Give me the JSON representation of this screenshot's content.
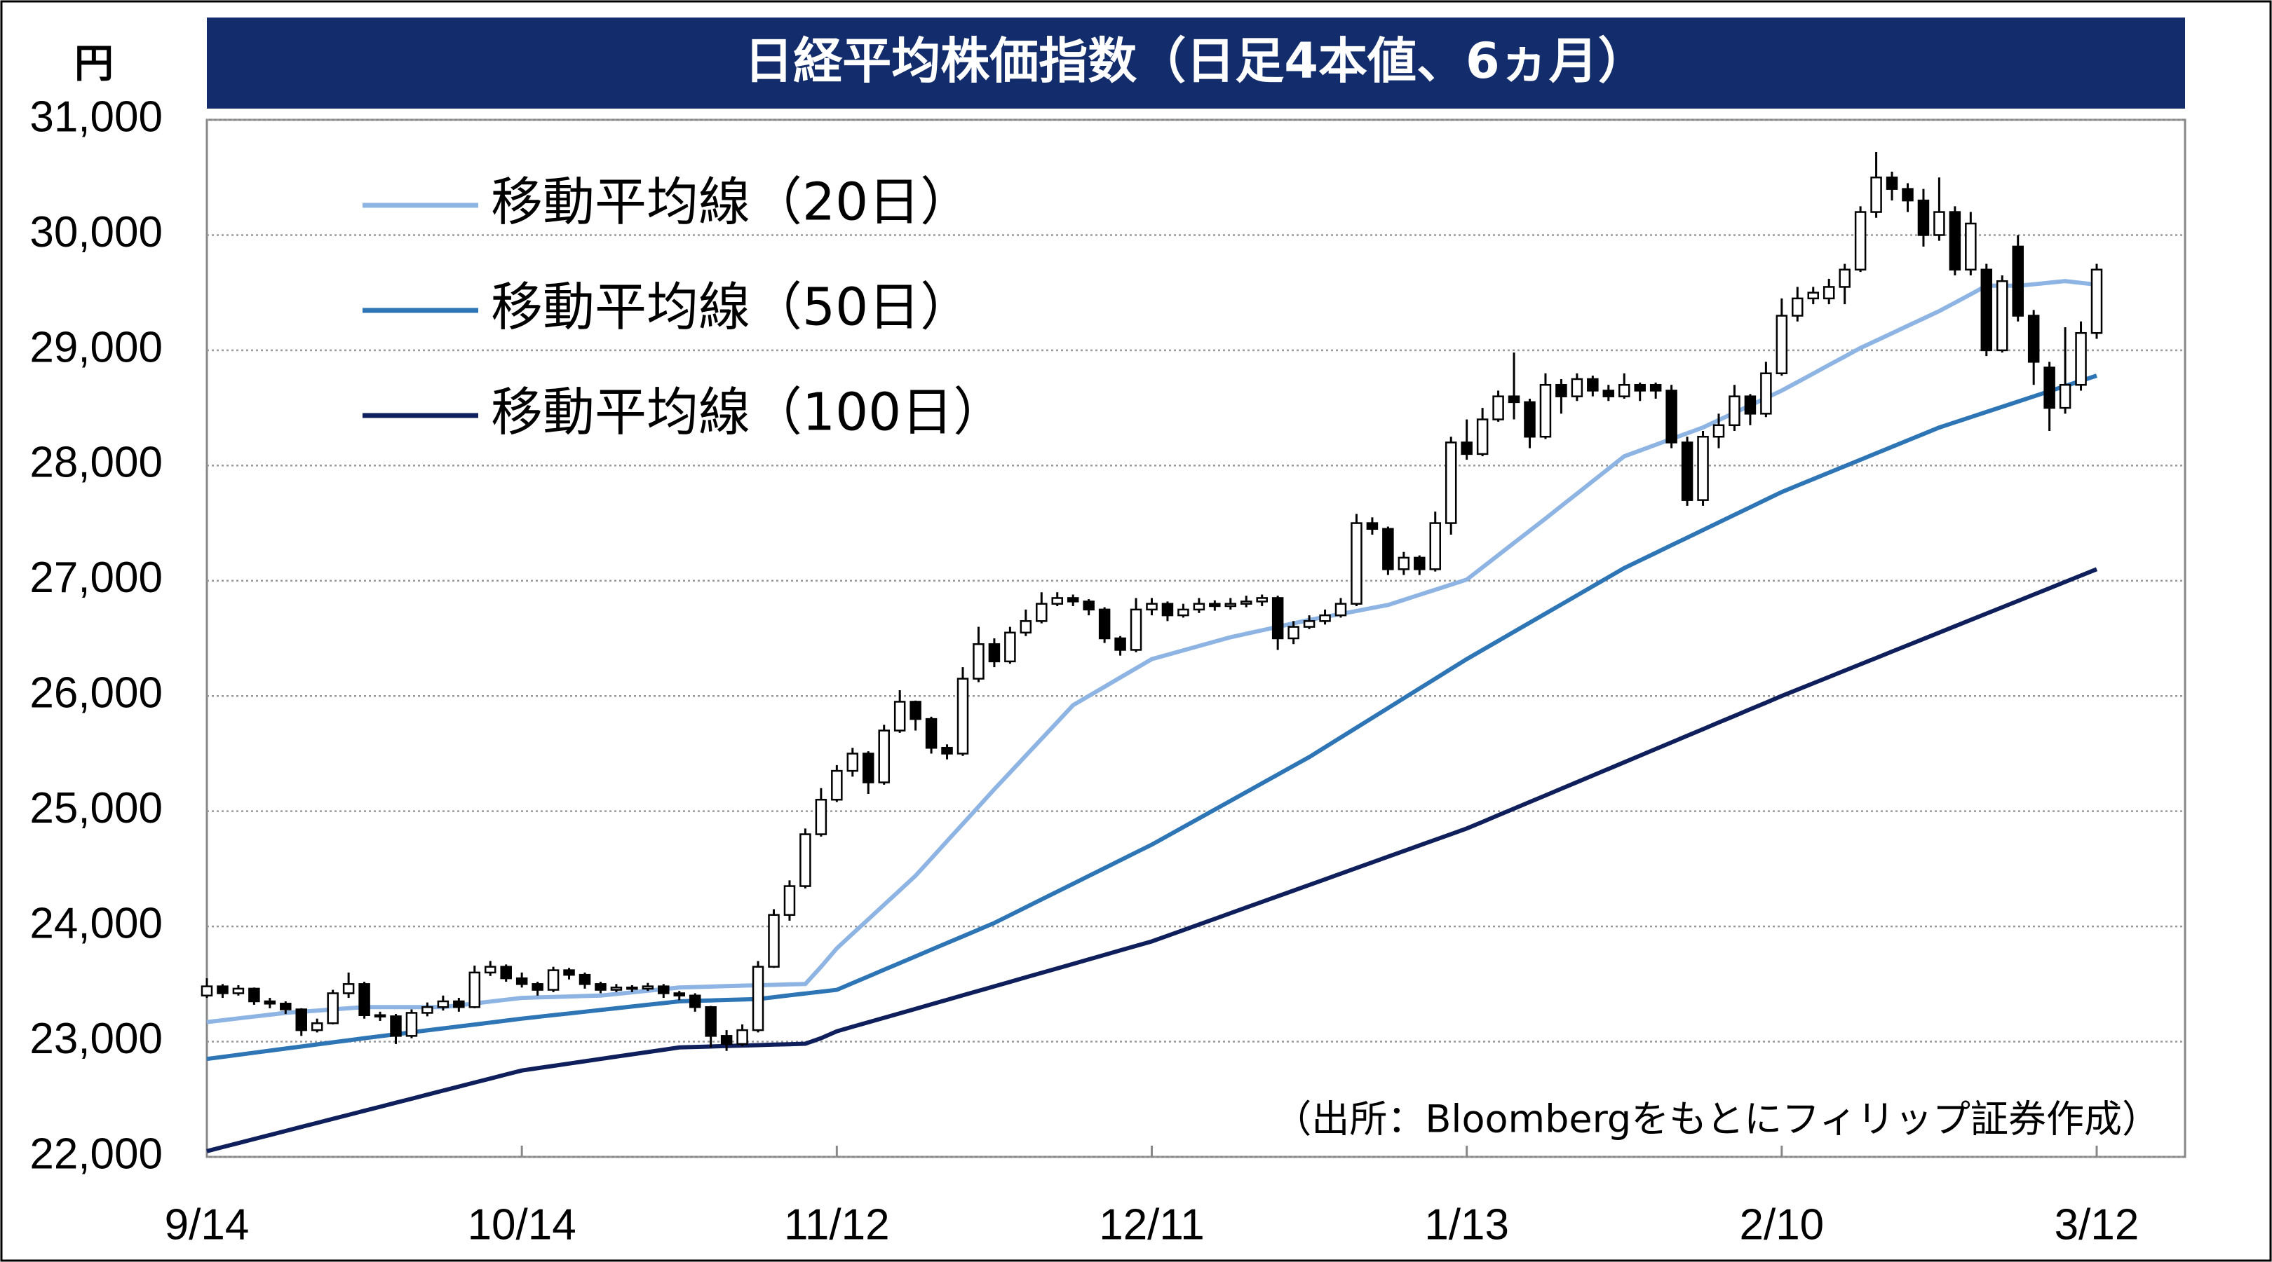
{
  "chart_data": {
    "type": "candlestick",
    "title": "日経平均株価指数（日足4本値、6ヵ月）",
    "y_unit": "円",
    "source": "（出所：Bloombergをもとにフィリップ証券作成）",
    "categories": [
      "9/14",
      null,
      null,
      null,
      null,
      null,
      null,
      null,
      null,
      null,
      null,
      null,
      null,
      null,
      null,
      null,
      null,
      null,
      null,
      null,
      "10/14",
      null,
      null,
      null,
      null,
      null,
      null,
      null,
      null,
      null,
      null,
      null,
      null,
      null,
      null,
      null,
      null,
      null,
      null,
      null,
      "11/12",
      null,
      null,
      null,
      null,
      null,
      null,
      null,
      null,
      null,
      null,
      null,
      null,
      null,
      null,
      null,
      null,
      null,
      null,
      null,
      "12/11",
      null,
      null,
      null,
      null,
      null,
      null,
      null,
      null,
      null,
      null,
      null,
      null,
      null,
      null,
      null,
      null,
      null,
      null,
      null,
      "1/13",
      null,
      null,
      null,
      null,
      null,
      null,
      null,
      null,
      null,
      null,
      null,
      null,
      null,
      null,
      null,
      null,
      null,
      null,
      null,
      "2/10",
      null,
      null,
      null,
      null,
      null,
      null,
      null,
      null,
      null,
      null,
      null,
      null,
      null,
      null,
      null,
      null,
      null,
      null,
      null,
      "3/12"
    ],
    "open": [
      23400,
      23480,
      23420,
      23460,
      23350,
      23330,
      23280,
      23100,
      23160,
      23420,
      23500,
      23230,
      23220,
      23050,
      23250,
      23300,
      23350,
      23300,
      23600,
      23650,
      23550,
      23500,
      23450,
      23620,
      23580,
      23500,
      23450,
      23470,
      23460,
      23480,
      23420,
      23400,
      23300,
      23050,
      22980,
      23100,
      23650,
      24100,
      24350,
      24800,
      25100,
      25350,
      25500,
      25250,
      25700,
      25950,
      25800,
      25550,
      25500,
      26150,
      26450,
      26300,
      26550,
      26650,
      26800,
      26850,
      26820,
      26750,
      26500,
      26400,
      26750,
      26800,
      26700,
      26750,
      26800,
      26780,
      26800,
      26820,
      26850,
      26500,
      26600,
      26650,
      26700,
      26800,
      27500,
      27450,
      27100,
      27200,
      27100,
      27500,
      28200,
      28100,
      28400,
      28600,
      28550,
      28250,
      28700,
      28600,
      28750,
      28650,
      28600,
      28700,
      28700,
      28650,
      28200,
      27700,
      28250,
      28350,
      28600,
      28450,
      28800,
      29300,
      29450,
      29450,
      29550,
      29700,
      30200,
      30500,
      30400,
      30300,
      30000,
      30200,
      29700,
      29700,
      29000,
      29900,
      29300,
      28850,
      28500,
      28700,
      29150
    ],
    "high": [
      23550,
      23500,
      23490,
      23470,
      23380,
      23350,
      23290,
      23200,
      23450,
      23600,
      23520,
      23260,
      23240,
      23280,
      23340,
      23400,
      23380,
      23660,
      23700,
      23670,
      23600,
      23520,
      23650,
      23640,
      23600,
      23520,
      23500,
      23490,
      23510,
      23500,
      23440,
      23420,
      23310,
      23100,
      23150,
      23700,
      24150,
      24400,
      24850,
      25200,
      25400,
      25550,
      25520,
      25750,
      26050,
      25960,
      25820,
      25580,
      26250,
      26600,
      26500,
      26600,
      26750,
      26900,
      26900,
      26880,
      26840,
      26770,
      26520,
      26850,
      26850,
      26820,
      26800,
      26850,
      26830,
      26850,
      26870,
      26880,
      26870,
      26650,
      26700,
      26750,
      26850,
      27580,
      27550,
      27470,
      27250,
      27220,
      27600,
      28250,
      28400,
      28500,
      28650,
      28980,
      28580,
      28800,
      28750,
      28800,
      28780,
      28700,
      28800,
      28720,
      28720,
      28700,
      28250,
      28300,
      28450,
      28700,
      28620,
      28900,
      29450,
      29550,
      29550,
      29620,
      29750,
      30250,
      30720,
      30550,
      30450,
      30400,
      30500,
      30250,
      30200,
      29750,
      29650,
      30000,
      29350,
      28900,
      29200,
      29250,
      29750
    ],
    "low": [
      23380,
      23380,
      23400,
      23320,
      23290,
      23240,
      23050,
      23080,
      23150,
      23380,
      23200,
      23180,
      22980,
      23030,
      23220,
      23270,
      23260,
      23290,
      23570,
      23520,
      23470,
      23400,
      23430,
      23540,
      23460,
      23420,
      23430,
      23430,
      23440,
      23380,
      23360,
      23260,
      22950,
      22920,
      22960,
      23080,
      23640,
      24050,
      24330,
      24780,
      25080,
      25300,
      25150,
      25230,
      25680,
      25700,
      25500,
      25450,
      25480,
      26120,
      26250,
      26280,
      26520,
      26630,
      26780,
      26780,
      26700,
      26460,
      26350,
      26380,
      26700,
      26650,
      26680,
      26720,
      26740,
      26750,
      26770,
      26780,
      26400,
      26450,
      26580,
      26620,
      26680,
      26780,
      27400,
      27050,
      27050,
      27050,
      27080,
      27400,
      28050,
      28080,
      28380,
      28400,
      28150,
      28230,
      28450,
      28560,
      28600,
      28560,
      28580,
      28560,
      28580,
      28150,
      27650,
      27650,
      28150,
      28300,
      28350,
      28420,
      28780,
      29250,
      29400,
      29400,
      29400,
      29680,
      30150,
      30300,
      30200,
      29900,
      29950,
      29650,
      29650,
      28950,
      28980,
      29250,
      28700,
      28300,
      28450,
      28650,
      29100
    ],
    "close": [
      23480,
      23420,
      23460,
      23350,
      23330,
      23280,
      23100,
      23160,
      23420,
      23500,
      23230,
      23220,
      23050,
      23250,
      23300,
      23350,
      23300,
      23600,
      23650,
      23550,
      23500,
      23450,
      23620,
      23580,
      23500,
      23450,
      23470,
      23460,
      23480,
      23420,
      23400,
      23300,
      23050,
      22980,
      23100,
      23650,
      24100,
      24350,
      24800,
      25100,
      25350,
      25500,
      25250,
      25700,
      25950,
      25800,
      25550,
      25500,
      26150,
      26450,
      26300,
      26550,
      26650,
      26800,
      26850,
      26820,
      26750,
      26500,
      26400,
      26750,
      26800,
      26700,
      26750,
      26800,
      26780,
      26800,
      26820,
      26850,
      26500,
      26600,
      26650,
      26700,
      26800,
      27500,
      27450,
      27100,
      27200,
      27100,
      27500,
      28200,
      28100,
      28400,
      28600,
      28550,
      28250,
      28700,
      28600,
      28750,
      28650,
      28600,
      28700,
      28650,
      28650,
      28200,
      27700,
      28250,
      28350,
      28600,
      28450,
      28800,
      29300,
      29450,
      29500,
      29550,
      29700,
      30200,
      30500,
      30400,
      30300,
      30000,
      30200,
      29700,
      30100,
      29000,
      29600,
      29300,
      28900,
      28500,
      28700,
      29150,
      29700
    ],
    "series": [
      {
        "name": "移動平均線（20日）",
        "color": "#8eb4e3",
        "values": [
          23170,
          23186,
          23202,
          23218,
          23234,
          23250,
          23260,
          23270,
          23280,
          23290,
          23300,
          23300,
          23300,
          23300,
          23300,
          23300,
          23316,
          23332,
          23348,
          23364,
          23380,
          23384,
          23388,
          23392,
          23396,
          23400,
          23414,
          23428,
          23442,
          23456,
          23470,
          23474,
          23478,
          23482,
          23486,
          23490,
          23493,
          23497,
          23500,
          23650,
          23810,
          23936,
          24062,
          24188,
          24314,
          24440,
          24590,
          24740,
          24890,
          25040,
          25190,
          25336,
          25482,
          25628,
          25774,
          25920,
          26000,
          26080,
          26160,
          26240,
          26320,
          26358,
          26396,
          26434,
          26472,
          26510,
          26540,
          26570,
          26600,
          26630,
          26660,
          26686,
          26712,
          26738,
          26764,
          26790,
          26834,
          26878,
          26922,
          26966,
          27010,
          27116,
          27222,
          27328,
          27434,
          27540,
          27648,
          27756,
          27864,
          27972,
          28080,
          28130,
          28180,
          28230,
          28280,
          28330,
          28394,
          28458,
          28522,
          28586,
          28650,
          28724,
          28798,
          28872,
          28946,
          29020,
          29084,
          29148,
          29212,
          29276,
          29340,
          29413,
          29486,
          29560,
          29560,
          29560,
          29573,
          29587,
          29600,
          29585,
          29570
        ]
      },
      {
        "name": "移動平均線（50日）",
        "color": "#2e75b6",
        "values": [
          22850,
          22868,
          22886,
          22904,
          22922,
          22940,
          22958,
          22976,
          22994,
          23012,
          23030,
          23047,
          23064,
          23081,
          23098,
          23115,
          23132,
          23149,
          23166,
          23183,
          23200,
          23215,
          23230,
          23245,
          23260,
          23275,
          23290,
          23305,
          23320,
          23335,
          23350,
          23354,
          23358,
          23362,
          23366,
          23370,
          23386,
          23402,
          23418,
          23434,
          23450,
          23508,
          23566,
          23624,
          23682,
          23740,
          23798,
          23856,
          23914,
          23972,
          24030,
          24098,
          24166,
          24234,
          24302,
          24370,
          24438,
          24506,
          24574,
          24642,
          24710,
          24786,
          24862,
          24938,
          25014,
          25090,
          25166,
          25242,
          25318,
          25394,
          25470,
          25555,
          25640,
          25725,
          25810,
          25895,
          25980,
          26065,
          26150,
          26235,
          26320,
          26399,
          26478,
          26557,
          26636,
          26715,
          26794,
          26873,
          26952,
          27031,
          27110,
          27176,
          27242,
          27308,
          27374,
          27440,
          27506,
          27572,
          27638,
          27704,
          27770,
          27826,
          27882,
          27938,
          27994,
          28050,
          28106,
          28162,
          28218,
          28274,
          28330,
          28375,
          28420,
          28465,
          28510,
          28555,
          28600,
          28645,
          28690,
          28735,
          28780
        ]
      },
      {
        "name": "移動平均線（100日）",
        "color": "#0f1f5c",
        "values": [
          22050,
          22085,
          22120,
          22155,
          22190,
          22225,
          22260,
          22295,
          22330,
          22365,
          22400,
          22435,
          22470,
          22505,
          22540,
          22575,
          22610,
          22645,
          22680,
          22715,
          22750,
          22770,
          22790,
          22810,
          22830,
          22850,
          22870,
          22890,
          22910,
          22930,
          22950,
          22954,
          22958,
          22962,
          22966,
          22970,
          22974,
          22978,
          22982,
          23030,
          23090,
          23129,
          23168,
          23207,
          23246,
          23285,
          23324,
          23363,
          23402,
          23441,
          23480,
          23519,
          23558,
          23597,
          23636,
          23675,
          23714,
          23753,
          23792,
          23831,
          23870,
          23919,
          23968,
          24017,
          24066,
          24115,
          24164,
          24213,
          24262,
          24311,
          24360,
          24409,
          24458,
          24507,
          24556,
          24605,
          24654,
          24703,
          24752,
          24801,
          24850,
          24907,
          24965,
          25022,
          25080,
          25137,
          25195,
          25252,
          25310,
          25367,
          25425,
          25482,
          25540,
          25597,
          25655,
          25712,
          25770,
          25827,
          25885,
          25942,
          26000,
          26055,
          26110,
          26165,
          26220,
          26275,
          26330,
          26385,
          26440,
          26495,
          26550,
          26605,
          26660,
          26715,
          26770,
          26825,
          26880,
          26935,
          26990,
          27045,
          27100
        ]
      }
    ],
    "rising_color": "#ffffff",
    "falling_color": "#000000",
    "ylim": [
      22000,
      31000
    ],
    "yticks": [
      {
        "value": 22000,
        "label": "22,000"
      },
      {
        "value": 23000,
        "label": "23,000"
      },
      {
        "value": 24000,
        "label": "24,000"
      },
      {
        "value": 25000,
        "label": "25,000"
      },
      {
        "value": 26000,
        "label": "26,000"
      },
      {
        "value": 27000,
        "label": "27,000"
      },
      {
        "value": 28000,
        "label": "28,000"
      },
      {
        "value": 29000,
        "label": "29,000"
      },
      {
        "value": 30000,
        "label": "30,000"
      },
      {
        "value": 31000,
        "label": "31,000"
      }
    ],
    "grid": true,
    "legend": "top-left"
  }
}
